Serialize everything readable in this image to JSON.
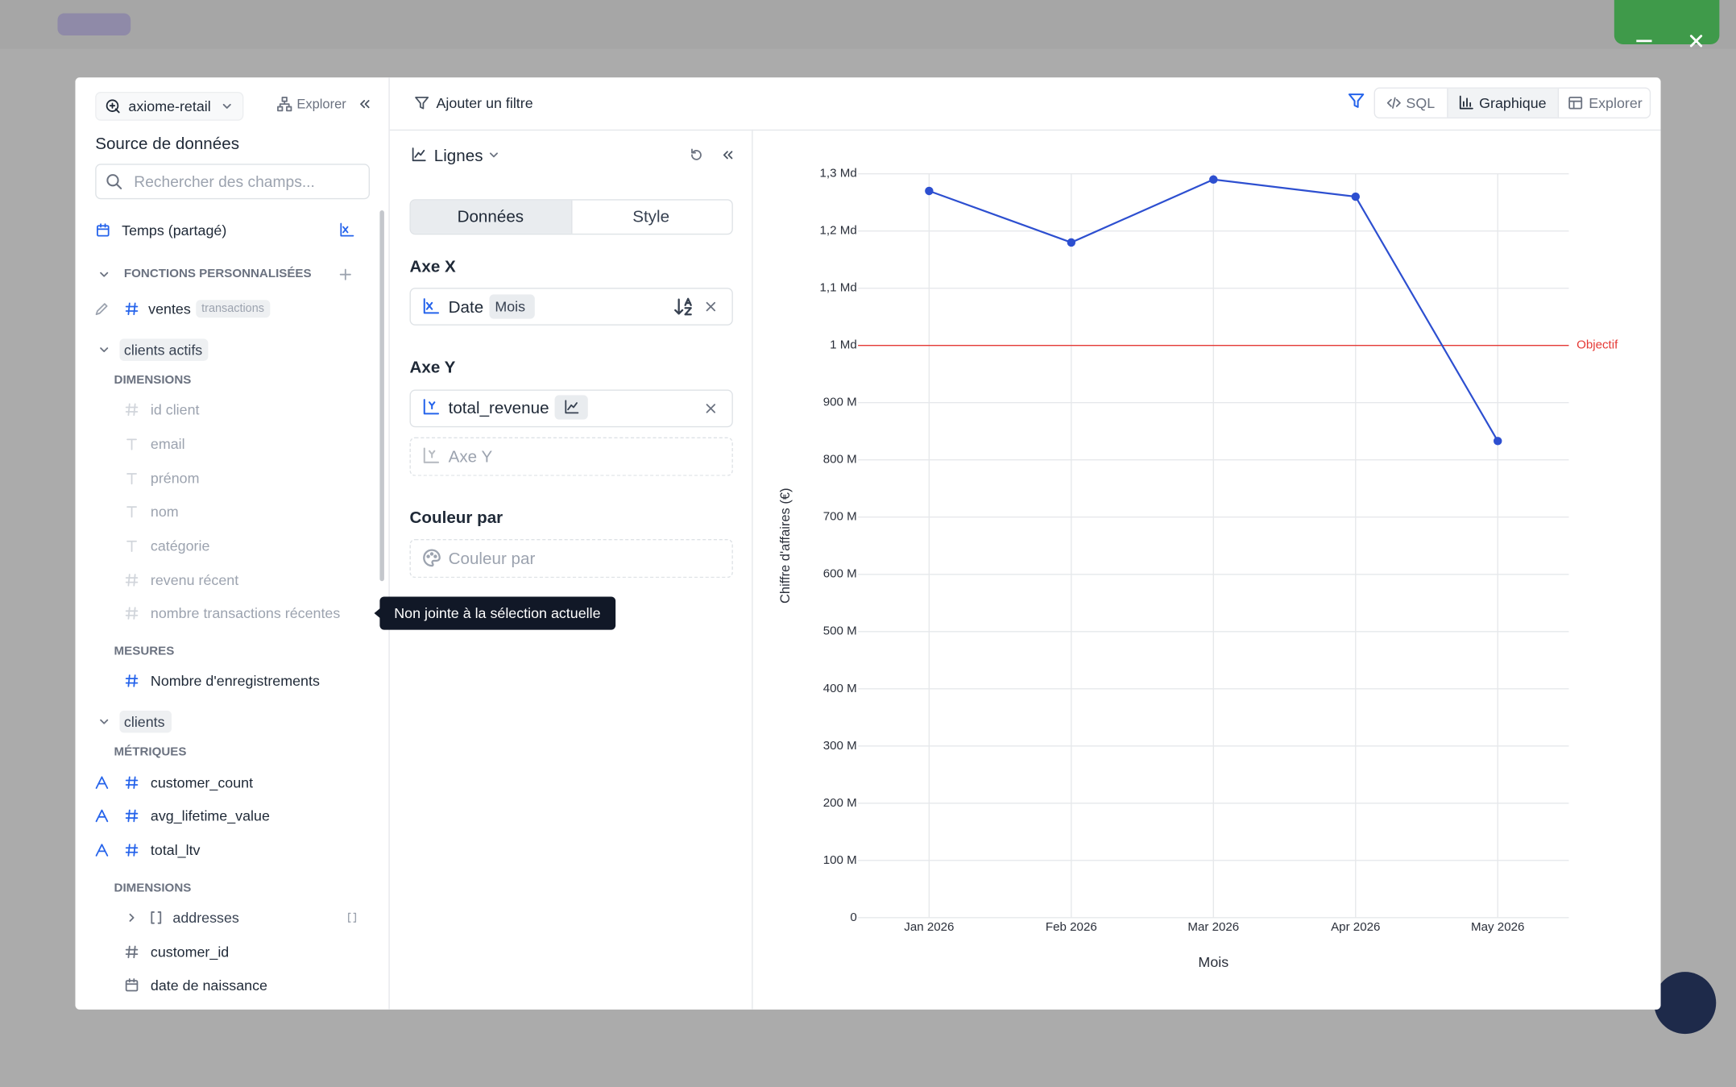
{
  "sidebar": {
    "source": "axiome-retail",
    "explore": "Explorer",
    "title": "Source de données",
    "search": "Rechercher des champs...",
    "time": "Temps (partagé)",
    "custom": {
      "title": "FONCTIONS PERSONNALISÉES",
      "fields": [
        {
          "name": "ventes",
          "table": "transactions"
        }
      ]
    },
    "groups": [
      {
        "name": "clients actifs",
        "sections": [
          {
            "title": "DIMENSIONS",
            "fields": [
              "id client",
              "email",
              "prénom",
              "nom",
              "catégorie",
              "revenu récent",
              "nombre transactions récentes"
            ]
          },
          {
            "title": "MESURES",
            "fields": [
              "Nombre d'enregistrements"
            ]
          }
        ]
      },
      {
        "name": "clients",
        "sections": [
          {
            "title": "MÉTRIQUES",
            "fields": [
              "customer_count",
              "avg_lifetime_value",
              "total_ltv"
            ]
          },
          {
            "title": "DIMENSIONS",
            "fields": [
              "addresses",
              "customer_id",
              "date de naissance"
            ]
          }
        ]
      }
    ]
  },
  "tooltip": "Non jointe à la sélection actuelle",
  "toolbar": {
    "add_filter": "Ajouter un filtre",
    "sql": "SQL",
    "chart": "Graphique",
    "explore": "Explorer"
  },
  "config": {
    "chart_type": "Lignes",
    "tabs": [
      "Données",
      "Style"
    ],
    "x_axis": {
      "title": "Axe X",
      "field": "Date",
      "grain": "Mois"
    },
    "y_axis": {
      "title": "Axe Y",
      "field": "total_revenue",
      "placeholder": "Axe Y"
    },
    "color": {
      "title": "Couleur par",
      "placeholder": "Couleur par"
    }
  },
  "chart_data": {
    "type": "line",
    "x_label": "Mois",
    "y_label": "Chiffre d'affaires (€)",
    "categories": [
      "Jan 2026",
      "Feb 2026",
      "Mar 2026",
      "Apr 2026",
      "May 2026"
    ],
    "series": [
      {
        "name": "total_revenue",
        "color": "#2d4fd0",
        "values": [
          1270000000,
          1180000000,
          1290000000,
          1260000000,
          833000000
        ]
      }
    ],
    "ylim": [
      0,
      1300000000
    ],
    "yticks": [
      0,
      {
        "value": 100000000,
        "label": "100 M"
      },
      {
        "value": 200000000,
        "label": "200 M"
      },
      {
        "value": 300000000,
        "label": "300 M"
      },
      {
        "value": 400000000,
        "label": "400 M"
      },
      {
        "value": 500000000,
        "label": "500 M"
      },
      {
        "value": 600000000,
        "label": "600 M"
      },
      {
        "value": 700000000,
        "label": "700 M"
      },
      {
        "value": 800000000,
        "label": "800 M"
      },
      {
        "value": 900000000,
        "label": "900 M"
      },
      {
        "value": 1000000000,
        "label": "1 Md"
      },
      {
        "value": 1100000000,
        "label": "1,1 Md"
      },
      {
        "value": 1200000000,
        "label": "1,2 Md"
      },
      {
        "value": 1300000000,
        "label": "1,3 Md"
      }
    ],
    "grid": true,
    "reference_lines": [
      {
        "value": 1000000000,
        "label": "Objectif",
        "color": "#e53935"
      }
    ]
  }
}
